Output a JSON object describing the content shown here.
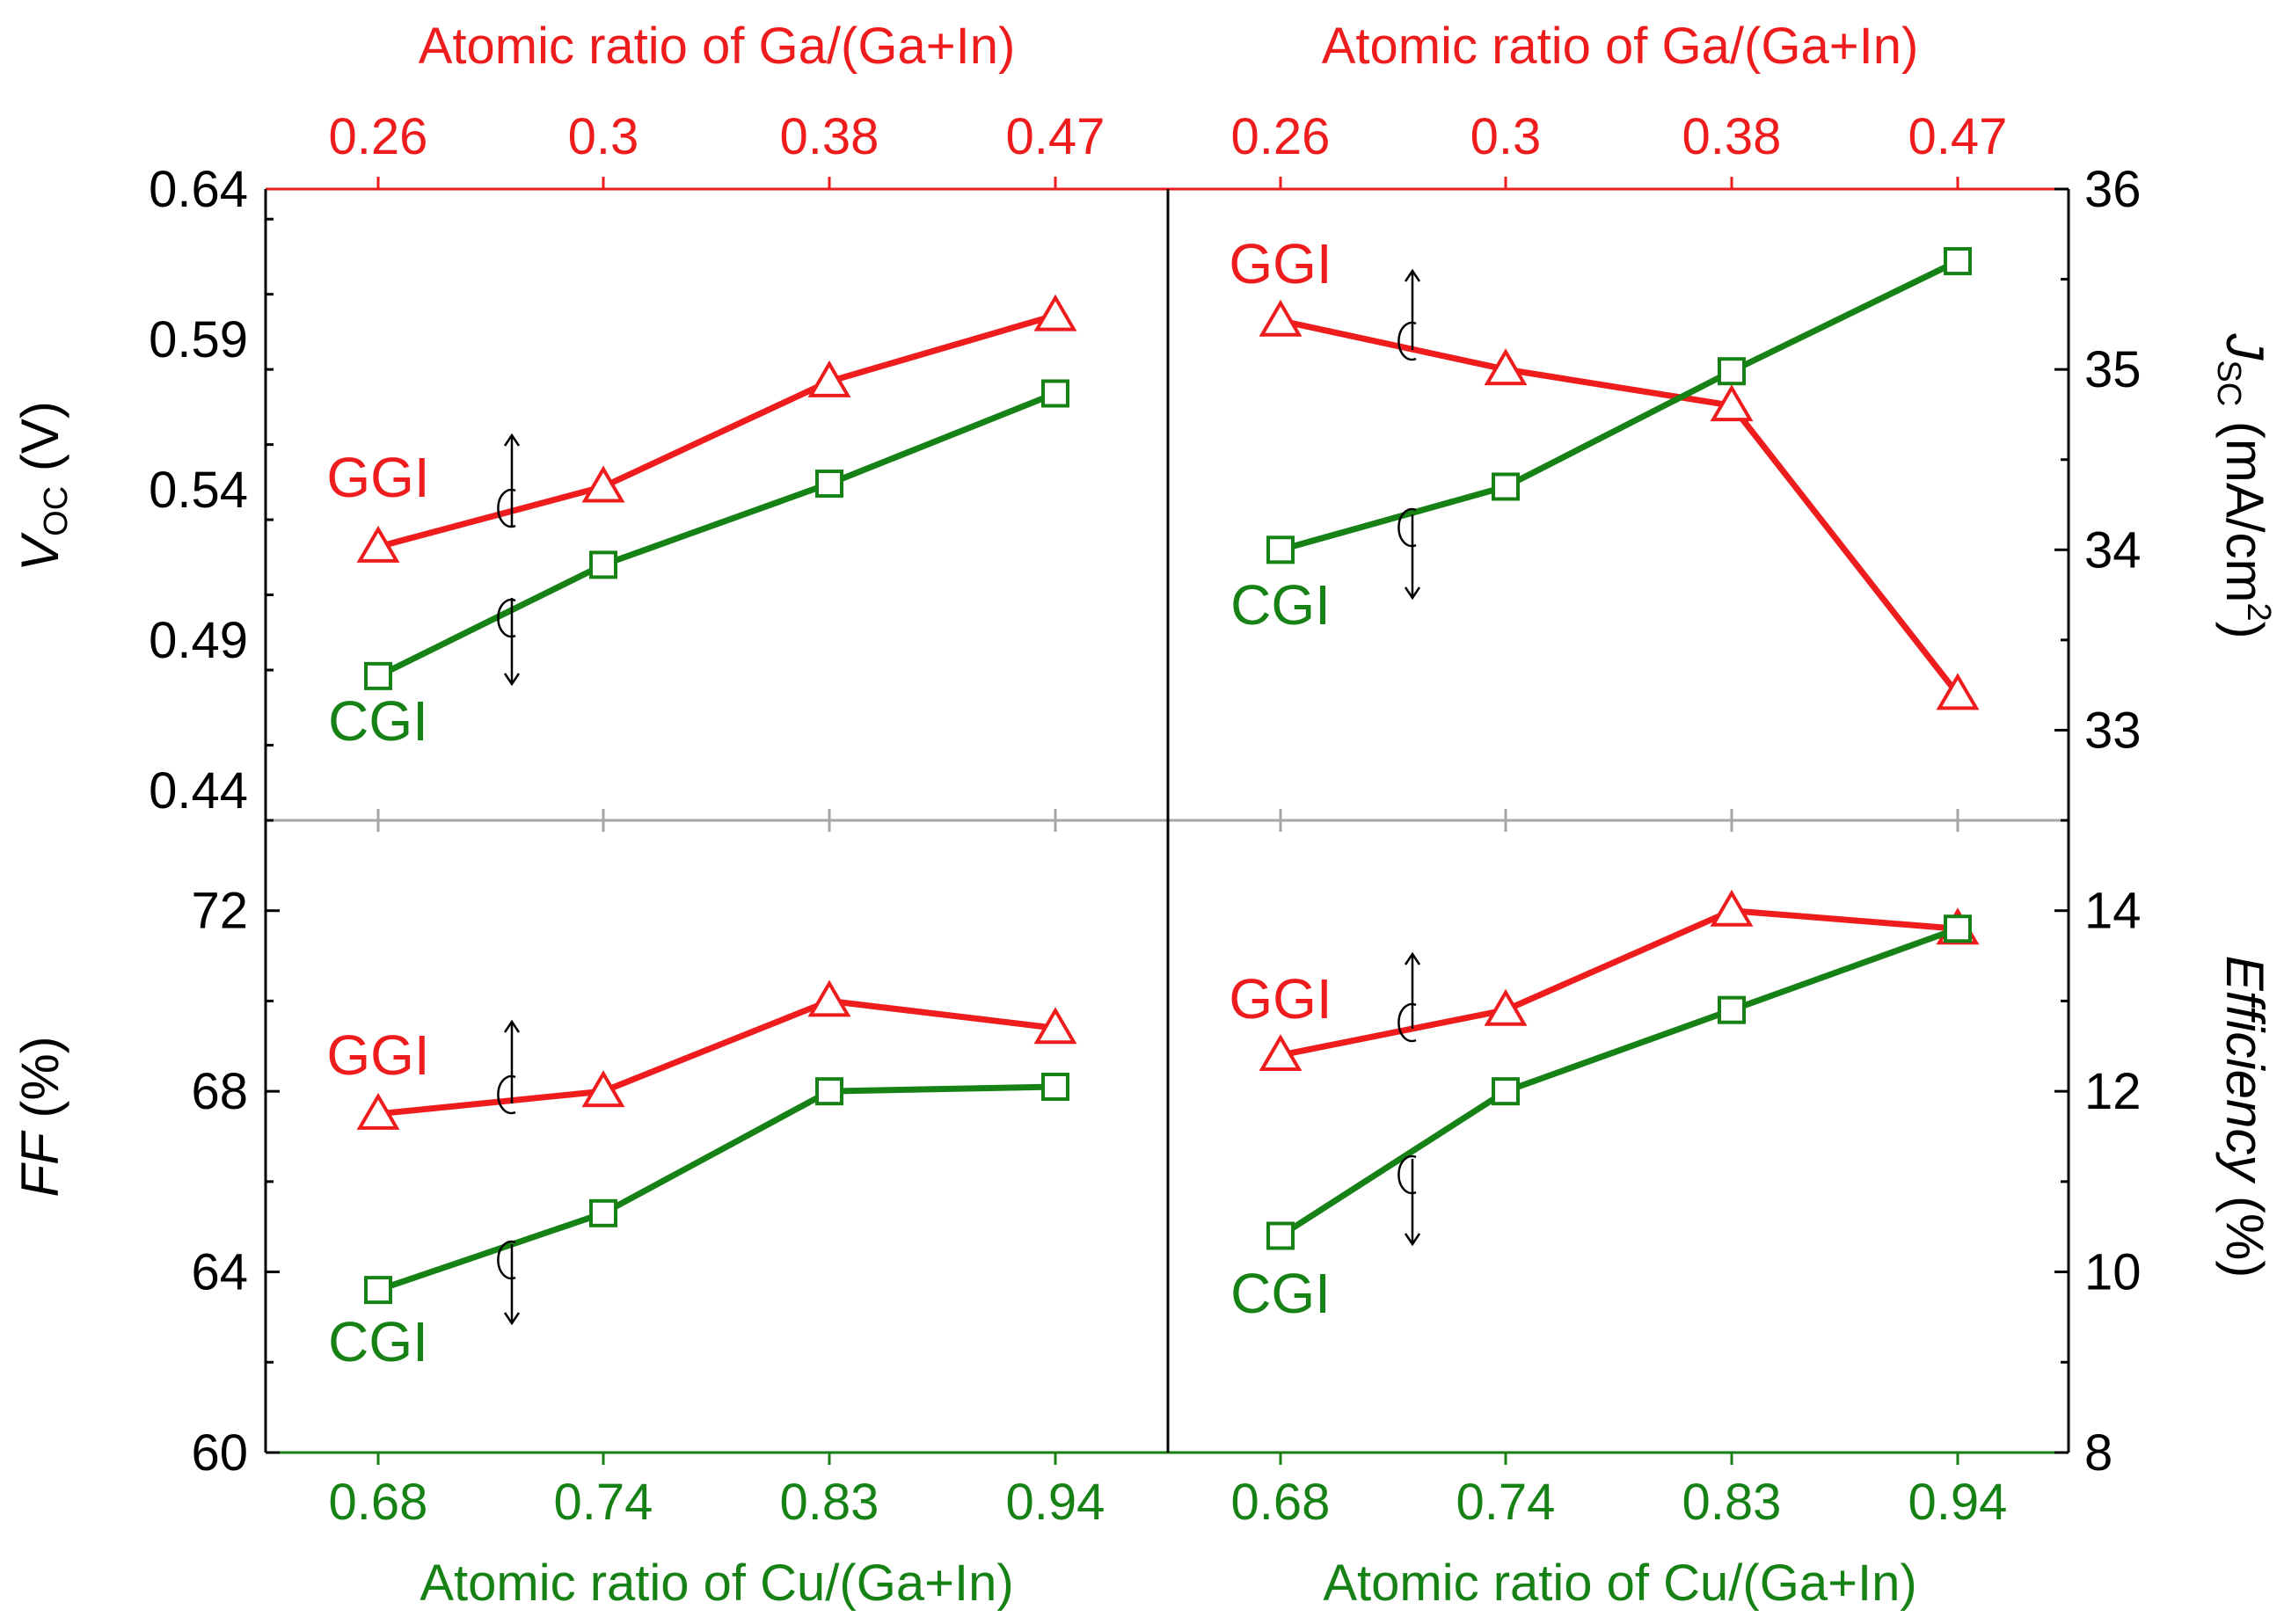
{
  "colors": {
    "ggi": "#ee1c1c",
    "cgi": "#168216",
    "axis": "#000000",
    "divider": "#a6a6a6"
  },
  "top_axis": {
    "label": "Atomic ratio of Ga/(Ga+In)",
    "ticks": [
      "0.26",
      "0.3",
      "0.38",
      "0.47"
    ]
  },
  "bottom_axis": {
    "label": "Atomic ratio of Cu/(Ga+In)",
    "ticks": [
      "0.68",
      "0.74",
      "0.83",
      "0.94"
    ]
  },
  "chart_data": [
    {
      "type": "line",
      "panel": "top-left",
      "title": "",
      "xlabel": "Atomic ratio of Cu/(Ga+In)",
      "ylabel_main": "V",
      "ylabel_sub": "OC",
      "ylabel_unit": " (V)",
      "y_side": "left",
      "ylim": [
        0.43,
        0.64
      ],
      "y_ticks": [
        "0.64",
        "0.59",
        "0.54",
        "0.49",
        "0.44"
      ],
      "y_tick_values": [
        0.64,
        0.59,
        0.54,
        0.49,
        0.44
      ],
      "categories": [
        "0.68",
        "0.74",
        "0.83",
        "0.94"
      ],
      "series": [
        {
          "name": "GGI",
          "label": "GGI",
          "marker": "triangle",
          "values": [
            0.521,
            0.541,
            0.576,
            0.598
          ]
        },
        {
          "name": "CGI",
          "label": "CGI",
          "marker": "square",
          "values": [
            0.478,
            0.515,
            0.542,
            0.572
          ]
        }
      ]
    },
    {
      "type": "line",
      "panel": "top-right",
      "title": "",
      "xlabel": "Atomic ratio of Cu/(Ga+In)",
      "ylabel_main": "J",
      "ylabel_sub": "SC",
      "ylabel_unit": " (mA/cm",
      "ylabel_sup": "2",
      "ylabel_close": ")",
      "y_side": "right",
      "ylim": [
        32.5,
        36
      ],
      "y_ticks": [
        "36",
        "35",
        "34",
        "33"
      ],
      "y_tick_values": [
        36,
        35,
        34,
        33
      ],
      "categories": [
        "0.68",
        "0.74",
        "0.83",
        "0.94"
      ],
      "series": [
        {
          "name": "GGI",
          "label": "GGI",
          "marker": "triangle",
          "values": [
            35.27,
            35.0,
            34.8,
            33.2
          ]
        },
        {
          "name": "CGI",
          "label": "CGI",
          "marker": "square",
          "values": [
            34.0,
            34.35,
            34.99,
            35.6
          ]
        }
      ]
    },
    {
      "type": "line",
      "panel": "bottom-left",
      "title": "",
      "xlabel": "Atomic ratio of Cu/(Ga+In)",
      "ylabel_main": "FF",
      "ylabel_unit": " (%)",
      "y_side": "left",
      "ylim": [
        60,
        74
      ],
      "y_ticks": [
        "72",
        "68",
        "64",
        "60"
      ],
      "y_tick_values": [
        72,
        68,
        64,
        60
      ],
      "categories": [
        "0.68",
        "0.74",
        "0.83",
        "0.94"
      ],
      "series": [
        {
          "name": "GGI",
          "label": "GGI",
          "marker": "triangle",
          "values": [
            67.5,
            68.0,
            70.0,
            69.4
          ]
        },
        {
          "name": "CGI",
          "label": "CGI",
          "marker": "square",
          "values": [
            63.6,
            65.3,
            68.0,
            68.1
          ]
        }
      ]
    },
    {
      "type": "line",
      "panel": "bottom-right",
      "title": "",
      "xlabel": "Atomic ratio of Cu/(Ga+In)",
      "ylabel_main": "Efficiency",
      "ylabel_unit": " (%)",
      "y_side": "right",
      "ylim": [
        8,
        15
      ],
      "y_ticks": [
        "14",
        "12",
        "10",
        "8"
      ],
      "y_tick_values": [
        14,
        12,
        10,
        8
      ],
      "categories": [
        "0.68",
        "0.74",
        "0.83",
        "0.94"
      ],
      "series": [
        {
          "name": "GGI",
          "label": "GGI",
          "marker": "triangle",
          "values": [
            12.4,
            12.9,
            14.0,
            13.8
          ]
        },
        {
          "name": "CGI",
          "label": "CGI",
          "marker": "square",
          "values": [
            10.4,
            12.0,
            12.9,
            13.8
          ]
        }
      ]
    }
  ]
}
